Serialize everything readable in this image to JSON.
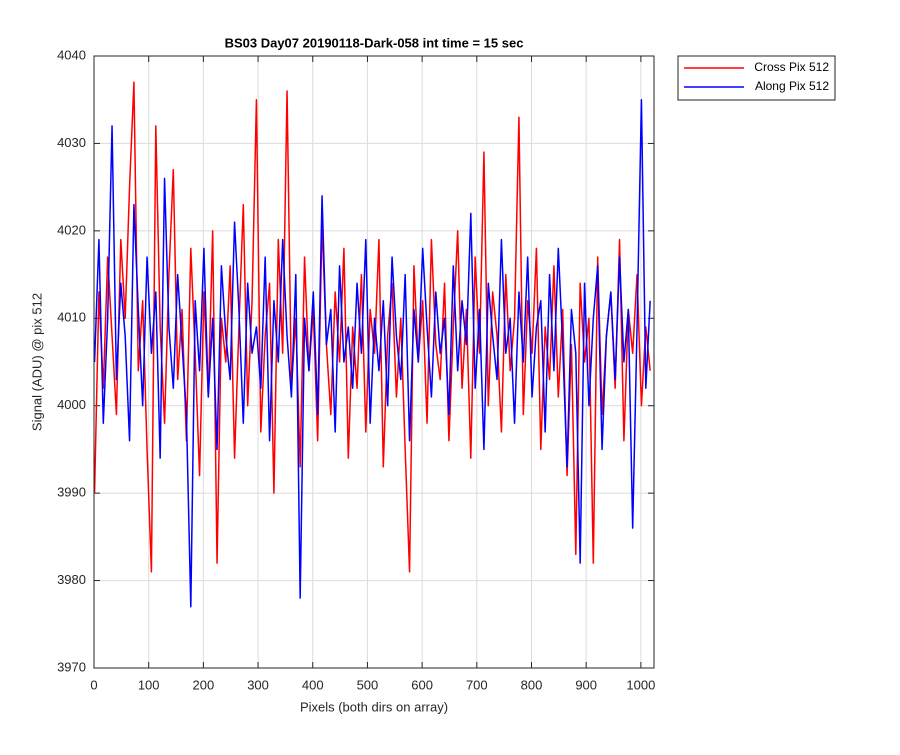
{
  "chart_data": {
    "type": "line",
    "title": "BS03 Day07 20190118-Dark-058 int time = 15 sec",
    "x_label": "Pixels (both dirs on array)",
    "y_label": "Signal (ADU) @ pix 512",
    "x": [
      1,
      9,
      17,
      25,
      33,
      41,
      49,
      57,
      65,
      73,
      81,
      89,
      97,
      105,
      113,
      121,
      129,
      137,
      145,
      153,
      161,
      169,
      177,
      185,
      193,
      201,
      209,
      217,
      225,
      233,
      241,
      249,
      257,
      265,
      273,
      281,
      289,
      297,
      305,
      313,
      321,
      329,
      337,
      345,
      353,
      361,
      369,
      377,
      385,
      393,
      401,
      409,
      417,
      425,
      433,
      441,
      449,
      457,
      465,
      473,
      481,
      489,
      497,
      505,
      513,
      521,
      529,
      537,
      545,
      553,
      561,
      569,
      577,
      585,
      593,
      601,
      609,
      617,
      625,
      633,
      641,
      649,
      657,
      665,
      673,
      681,
      689,
      697,
      705,
      713,
      721,
      729,
      737,
      745,
      753,
      761,
      769,
      777,
      785,
      793,
      801,
      809,
      817,
      825,
      833,
      841,
      849,
      857,
      865,
      873,
      881,
      889,
      897,
      905,
      913,
      921,
      929,
      937,
      945,
      953,
      961,
      969,
      977,
      985,
      993,
      1001,
      1009,
      1017
    ],
    "series": [
      {
        "name": "Cross Pix 512",
        "color": "#ff0000",
        "values": [
          3990,
          4013,
          4002,
          4017,
          4008,
          3999,
          4019,
          4010,
          4025,
          4037,
          4004,
          4012,
          3995,
          3981,
          4032,
          4009,
          3998,
          4015,
          4027,
          4003,
          4011,
          3996,
          4018,
          4006,
          3992,
          4013,
          4001,
          4020,
          3982,
          4010,
          4005,
          4016,
          3994,
          4009,
          4023,
          4000,
          4012,
          4035,
          3997,
          4008,
          4014,
          3990,
          4019,
          4006,
          4036,
          4002,
          4010,
          3993,
          4017,
          4004,
          4011,
          3996,
          4021,
          4007,
          3999,
          4013,
          4005,
          4018,
          3994,
          4009,
          4002,
          4015,
          3997,
          4011,
          4006,
          4019,
          3993,
          4008,
          4014,
          4001,
          4010,
          3995,
          3981,
          4016,
          4005,
          4012,
          3998,
          4019,
          4007,
          4003,
          4014,
          3996,
          4009,
          4020,
          4002,
          4011,
          3994,
          4017,
          4006,
          4029,
          4000,
          4013,
          4008,
          3997,
          4015,
          4004,
          4010,
          4033,
          3999,
          4012,
          4006,
          4018,
          3995,
          4009,
          4003,
          4016,
          4001,
          4011,
          3992,
          4007,
          3983,
          4014,
          4005,
          4010,
          3982,
          4017,
          3999,
          4008,
          4013,
          4002,
          4019,
          3996,
          4011,
          4006,
          4015,
          4000,
          4009,
          4004
        ]
      },
      {
        "name": "Along Pix 512",
        "color": "#0000ff",
        "values": [
          4005,
          4019,
          3998,
          4010,
          4032,
          4003,
          4014,
          4008,
          3996,
          4023,
          4011,
          4000,
          4017,
          4006,
          4013,
          3994,
          4026,
          4009,
          4002,
          4015,
          4007,
          3999,
          3977,
          4012,
          4004,
          4018,
          4001,
          4010,
          3995,
          4016,
          4008,
          4003,
          4021,
          4011,
          3998,
          4014,
          4006,
          4009,
          4002,
          4017,
          3996,
          4012,
          4005,
          4019,
          4008,
          4001,
          4015,
          3978,
          4010,
          4004,
          4013,
          3999,
          4024,
          4007,
          4011,
          3997,
          4016,
          4005,
          4009,
          4002,
          4014,
          4006,
          4019,
          3998,
          4010,
          4004,
          4012,
          4000,
          4017,
          4008,
          4003,
          4015,
          3996,
          4011,
          4005,
          4018,
          4009,
          4001,
          4013,
          4006,
          4010,
          3999,
          4016,
          4004,
          4012,
          4007,
          4022,
          4002,
          4011,
          3995,
          4014,
          4008,
          4003,
          4019,
          4006,
          4010,
          3998,
          4013,
          4005,
          4017,
          4001,
          4009,
          4012,
          3997,
          4015,
          4004,
          4018,
          4007,
          3993,
          4011,
          4006,
          3982,
          4014,
          4000,
          4010,
          4016,
          3995,
          4008,
          4013,
          4003,
          4017,
          4005,
          4011,
          3986,
          4009,
          4035,
          4002,
          4012
        ]
      }
    ],
    "xlim": [
      0,
      1024
    ],
    "ylim": [
      3970,
      4040
    ],
    "xticks": [
      0,
      100,
      200,
      300,
      400,
      500,
      600,
      700,
      800,
      900,
      1000
    ],
    "yticks": [
      3970,
      3980,
      3990,
      4000,
      4010,
      4020,
      4030,
      4040
    ],
    "grid": true,
    "legend": "northeastoutside"
  }
}
